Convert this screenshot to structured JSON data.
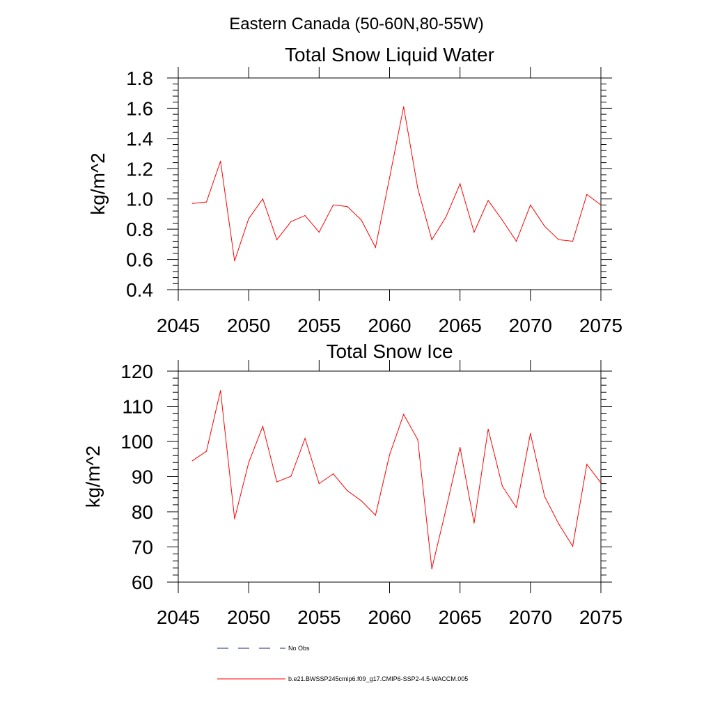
{
  "figure": {
    "title": "Eastern Canada (50-60N,80-55W)"
  },
  "chart_data": [
    {
      "type": "line",
      "title": "Total Snow Liquid Water",
      "xlabel": "",
      "ylabel": "kg/m^2",
      "xlim": [
        2045,
        2075
      ],
      "ylim": [
        0.4,
        1.8
      ],
      "xticks": [
        2045,
        2050,
        2055,
        2060,
        2065,
        2070,
        2075
      ],
      "yticks": [
        0.4,
        0.6,
        0.8,
        1.0,
        1.2,
        1.4,
        1.6,
        1.8
      ],
      "ytick_labels": [
        "0.4",
        "0.6",
        "0.8",
        "1.0",
        "1.2",
        "1.4",
        "1.6",
        "1.8"
      ],
      "x": [
        2046,
        2047,
        2048,
        2049,
        2050,
        2051,
        2052,
        2053,
        2054,
        2055,
        2056,
        2057,
        2058,
        2059,
        2060,
        2061,
        2062,
        2063,
        2064,
        2065,
        2066,
        2067,
        2068,
        2069,
        2070,
        2071,
        2072,
        2073,
        2074,
        2075
      ],
      "series": [
        {
          "name": "b.e21.BWSSP245cmip6.f09_g17.CMIP6-SSP2-4.5-WACCM.005",
          "color": "#ff0000",
          "values": [
            0.97,
            0.98,
            1.25,
            0.59,
            0.87,
            1.0,
            0.73,
            0.85,
            0.89,
            0.78,
            0.96,
            0.95,
            0.86,
            0.68,
            1.14,
            1.61,
            1.07,
            0.73,
            0.88,
            1.1,
            0.78,
            0.99,
            0.86,
            0.72,
            0.96,
            0.82,
            0.73,
            0.72,
            1.03,
            0.96
          ]
        }
      ],
      "grid": false
    },
    {
      "type": "line",
      "title": "Total Snow Ice",
      "xlabel": "",
      "ylabel": "kg/m^2",
      "xlim": [
        2045,
        2075
      ],
      "ylim": [
        60,
        120
      ],
      "xticks": [
        2045,
        2050,
        2055,
        2060,
        2065,
        2070,
        2075
      ],
      "yticks": [
        60,
        70,
        80,
        90,
        100,
        110,
        120
      ],
      "ytick_labels": [
        "60",
        "70",
        "80",
        "90",
        "100",
        "110",
        "120"
      ],
      "x": [
        2046,
        2047,
        2048,
        2049,
        2050,
        2051,
        2052,
        2053,
        2054,
        2055,
        2056,
        2057,
        2058,
        2059,
        2060,
        2061,
        2062,
        2063,
        2064,
        2065,
        2066,
        2067,
        2068,
        2069,
        2070,
        2071,
        2072,
        2073,
        2074,
        2075
      ],
      "series": [
        {
          "name": "b.e21.BWSSP245cmip6.f09_g17.CMIP6-SSP2-4.5-WACCM.005",
          "color": "#ff0000",
          "values": [
            94.5,
            97.2,
            114.5,
            78.0,
            94.0,
            104.3,
            88.5,
            90.1,
            100.9,
            88.0,
            90.8,
            86.0,
            83.1,
            79.0,
            96.2,
            107.7,
            100.5,
            63.8,
            80.6,
            98.3,
            76.8,
            103.5,
            87.3,
            81.2,
            102.3,
            84.4,
            76.6,
            70.2,
            93.5,
            88.2
          ]
        }
      ],
      "grid": false
    }
  ],
  "legend": {
    "placement": "bottom-center",
    "items": [
      {
        "label": "No Obs",
        "color": "#1a237e",
        "style": "dashed"
      },
      {
        "label": "b.e21.BWSSP245cmip6.f09_g17.CMIP6-SSP2-4.5-WACCM.005",
        "color": "#ff0000",
        "style": "solid"
      }
    ]
  }
}
